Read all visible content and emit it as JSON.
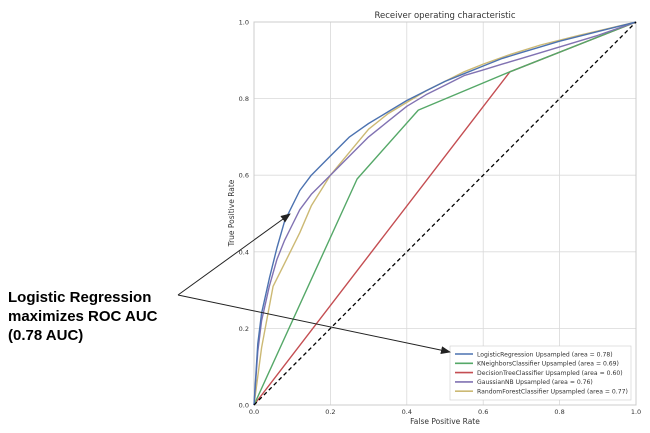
{
  "annotation": {
    "lines": [
      "Logistic Regression",
      "maximizes ROC AUC",
      "(0.78 AUC)"
    ]
  },
  "chart_data": {
    "type": "line",
    "title": "Receiver operating characteristic",
    "xlabel": "False Positive Rate",
    "ylabel": "True Positive Rate",
    "xlim": [
      0.0,
      1.0
    ],
    "ylim": [
      0.0,
      1.0
    ],
    "xticks": [
      "0.0",
      "0.2",
      "0.4",
      "0.6",
      "0.8",
      "1.0"
    ],
    "yticks": [
      "0.0",
      "0.2",
      "0.4",
      "0.6",
      "0.8",
      "1.0"
    ],
    "grid": true,
    "legend_position": "lower-right",
    "series": [
      {
        "name": "LogisticRegression Upsampled (area = 0.78)",
        "color": "#4c72b0",
        "x": [
          0,
          0.01,
          0.02,
          0.04,
          0.06,
          0.08,
          0.1,
          0.12,
          0.15,
          0.2,
          0.25,
          0.3,
          0.35,
          0.4,
          0.45,
          0.5,
          0.55,
          0.6,
          0.65,
          0.7,
          0.8,
          0.9,
          1.0
        ],
        "y": [
          0,
          0.16,
          0.24,
          0.33,
          0.41,
          0.48,
          0.52,
          0.56,
          0.6,
          0.65,
          0.7,
          0.735,
          0.765,
          0.795,
          0.82,
          0.845,
          0.865,
          0.885,
          0.905,
          0.92,
          0.95,
          0.975,
          1.0
        ]
      },
      {
        "name": "KNeighborsClassifier Upsampled (area = 0.69)",
        "color": "#55a868",
        "x": [
          0,
          0.27,
          0.43,
          0.67,
          1.0
        ],
        "y": [
          0,
          0.59,
          0.77,
          0.87,
          1.0
        ]
      },
      {
        "name": "DecisionTreeClassifier Upsampled (area = 0.60)",
        "color": "#c44e52",
        "x": [
          0,
          0.67,
          1.0
        ],
        "y": [
          0,
          0.87,
          1.0
        ]
      },
      {
        "name": "GaussianNB Upsampled (area = 0.76)",
        "color": "#8172b2",
        "x": [
          0,
          0.01,
          0.02,
          0.04,
          0.06,
          0.08,
          0.1,
          0.12,
          0.15,
          0.2,
          0.25,
          0.3,
          0.35,
          0.4,
          0.45,
          0.5,
          0.55,
          0.6,
          0.65,
          0.7,
          0.8,
          0.9,
          1.0
        ],
        "y": [
          0,
          0.14,
          0.22,
          0.31,
          0.38,
          0.43,
          0.47,
          0.51,
          0.55,
          0.6,
          0.65,
          0.7,
          0.74,
          0.78,
          0.81,
          0.835,
          0.86,
          0.875,
          0.89,
          0.905,
          0.935,
          0.965,
          1.0
        ]
      },
      {
        "name": "RandomForestClassifier Upsampled (area = 0.77)",
        "color": "#ccb974",
        "x": [
          0,
          0.02,
          0.05,
          0.08,
          0.12,
          0.15,
          0.2,
          0.25,
          0.3,
          0.35,
          0.4,
          0.45,
          0.5,
          0.55,
          0.6,
          0.67,
          0.75,
          0.85,
          1.0
        ],
        "y": [
          0,
          0.15,
          0.31,
          0.37,
          0.45,
          0.52,
          0.6,
          0.66,
          0.72,
          0.76,
          0.79,
          0.82,
          0.845,
          0.87,
          0.89,
          0.915,
          0.94,
          0.965,
          1.0
        ]
      }
    ],
    "reference_line": {
      "x": [
        0,
        1
      ],
      "y": [
        0,
        1
      ],
      "style": "dashed",
      "color": "#000000"
    }
  }
}
